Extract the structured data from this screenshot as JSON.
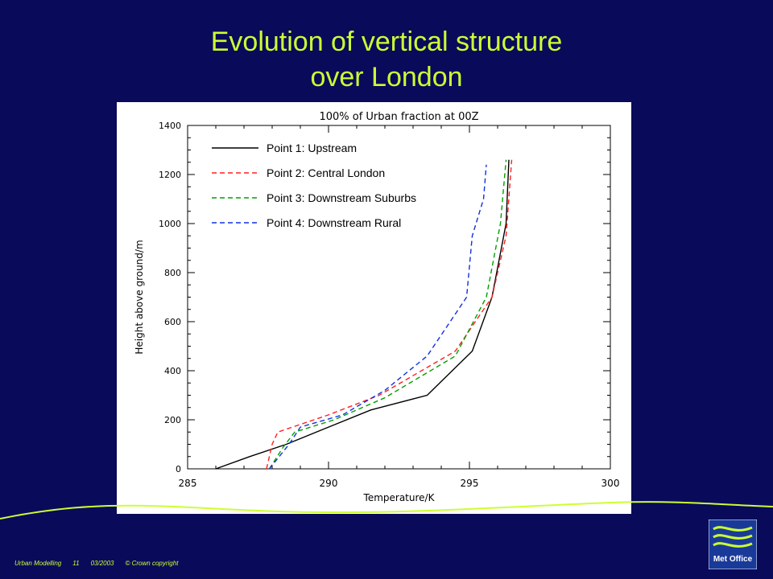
{
  "slide": {
    "title_line1": "Evolution of vertical structure",
    "title_line2": "over London",
    "footer_title": "Urban Modelling",
    "footer_page": "11",
    "footer_date": "03/2003",
    "footer_copyright": "© Crown copyright",
    "logo_text": "Met Office",
    "colors": {
      "background": "#0a0a5a",
      "title": "#ccff33",
      "footer": "#ccff33"
    }
  },
  "chart_data": {
    "type": "line",
    "title": "100% of Urban fraction at 00Z",
    "xlabel": "Temperature/K",
    "ylabel": "Height above ground/m",
    "xlim": [
      285,
      300
    ],
    "ylim": [
      0,
      1400
    ],
    "xticks": [
      285,
      290,
      295,
      300
    ],
    "yticks": [
      0,
      200,
      400,
      600,
      800,
      1000,
      1200,
      1400
    ],
    "grid": false,
    "legend_position": "top-left",
    "series": [
      {
        "name": "Point 1: Upstream",
        "color": "#000000",
        "dash": "solid",
        "x": [
          286.0,
          287.2,
          288.5,
          290.0,
          291.5,
          293.5,
          295.1,
          295.8,
          296.3,
          296.4
        ],
        "y": [
          0,
          50,
          100,
          170,
          240,
          300,
          480,
          700,
          1000,
          1260
        ]
      },
      {
        "name": "Point 2: Central London",
        "color": "#ff2020",
        "dash": "dashed",
        "x": [
          287.8,
          288.0,
          288.2,
          290.0,
          291.8,
          294.5,
          295.8,
          296.3,
          296.5
        ],
        "y": [
          0,
          100,
          150,
          220,
          300,
          480,
          700,
          950,
          1260
        ]
      },
      {
        "name": "Point 3: Downstream Suburbs",
        "color": "#00a000",
        "dash": "dashed",
        "x": [
          287.9,
          288.4,
          288.8,
          290.2,
          292.0,
          294.5,
          295.6,
          296.1,
          296.3
        ],
        "y": [
          0,
          90,
          150,
          200,
          290,
          460,
          700,
          1000,
          1260
        ]
      },
      {
        "name": "Point 4: Downstream Rural",
        "color": "#1030e0",
        "dash": "dashed",
        "x": [
          287.9,
          288.6,
          289.0,
          290.5,
          292.0,
          293.5,
          294.9,
          295.1,
          295.5,
          295.6
        ],
        "y": [
          0,
          100,
          170,
          220,
          320,
          460,
          700,
          950,
          1100,
          1240
        ]
      }
    ]
  }
}
